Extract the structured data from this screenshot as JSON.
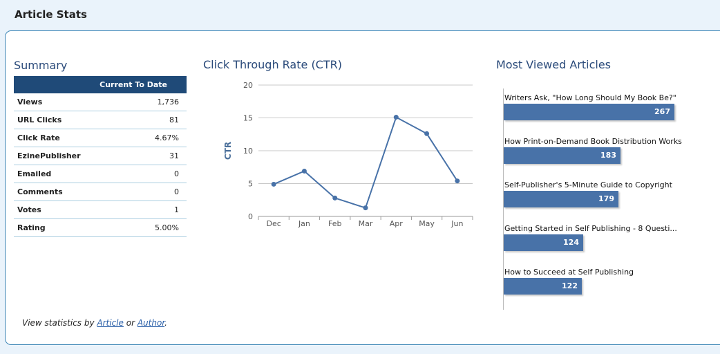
{
  "header": {
    "title": "Article Stats"
  },
  "summary": {
    "title": "Summary",
    "column_header": "Current To Date",
    "rows": [
      {
        "label": "Views",
        "value": "1,736"
      },
      {
        "label": "URL Clicks",
        "value": "81"
      },
      {
        "label": "Click Rate",
        "value": "4.67%"
      },
      {
        "label": "EzinePublisher",
        "value": "31"
      },
      {
        "label": "Emailed",
        "value": "0"
      },
      {
        "label": "Comments",
        "value": "0"
      },
      {
        "label": "Votes",
        "value": "1"
      },
      {
        "label": "Rating",
        "value": "5.00%"
      }
    ]
  },
  "footer": {
    "prefix": "View statistics by",
    "link_article": "Article",
    "middle": "or",
    "link_author": "Author",
    "suffix": "."
  },
  "ctr": {
    "title": "Click Through Rate (CTR)"
  },
  "most_viewed": {
    "title": "Most Viewed Articles"
  },
  "chart_data": [
    {
      "type": "line",
      "title": "Click Through Rate (CTR)",
      "xlabel": "",
      "ylabel": "CTR",
      "categories": [
        "Dec",
        "Jan",
        "Feb",
        "Mar",
        "Apr",
        "May",
        "Jun"
      ],
      "series": [
        {
          "values": [
            4.9,
            6.9,
            2.8,
            1.3,
            15.1,
            12.6,
            5.4
          ]
        }
      ],
      "ylim": [
        0,
        20
      ],
      "yticks": [
        0,
        5,
        10,
        15,
        20
      ],
      "grid": true,
      "color": "#4872a8"
    },
    {
      "type": "bar",
      "orientation": "horizontal",
      "title": "Most Viewed Articles",
      "categories": [
        "Writers Ask, \"How Long Should My Book Be?\"",
        "How Print-on-Demand Book Distribution Works",
        "Self-Publisher's 5-Minute Guide to Copyright",
        "Getting Started in Self Publishing - 8 Questi...",
        "How to Succeed at Self Publishing"
      ],
      "values": [
        267,
        183,
        179,
        124,
        122
      ],
      "color": "#4872a8"
    }
  ]
}
